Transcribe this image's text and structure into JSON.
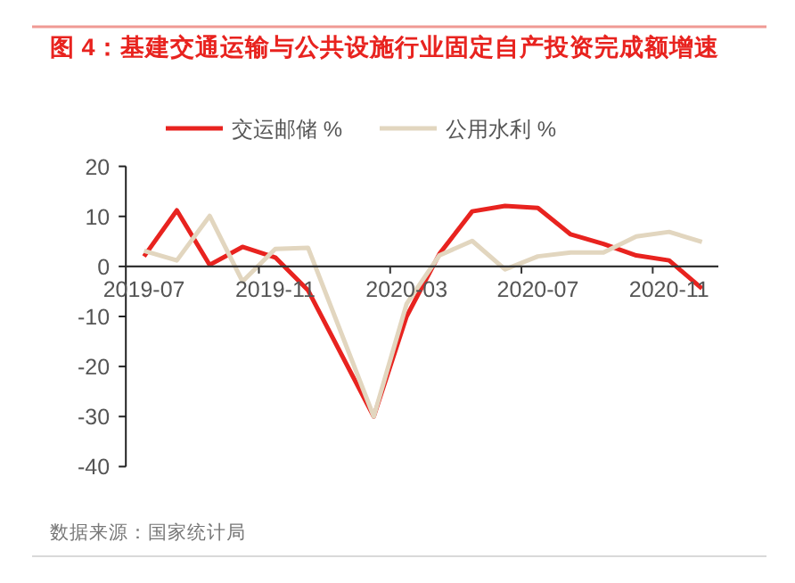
{
  "chart_data": {
    "type": "line",
    "title": "图 4：基建交通运输与公共设施行业固定自产投资完成额增速",
    "categories": [
      "2019-07",
      null,
      null,
      null,
      "2019-11",
      null,
      null,
      null,
      "2020-03",
      null,
      null,
      null,
      "2020-07",
      null,
      null,
      null,
      "2020-11",
      null
    ],
    "series": [
      {
        "name": "交运邮储 %",
        "color": "#e8231f",
        "values": [
          2.0,
          11.2,
          0.3,
          3.9,
          1.8,
          -4.8,
          null,
          -30,
          -10,
          2.5,
          11.0,
          12.1,
          11.7,
          6.4,
          4.5,
          2.2,
          1.2,
          -4.4
        ]
      },
      {
        "name": "公用水利 %",
        "color": "#e2d6bf",
        "values": [
          3.1,
          1.2,
          10.1,
          -3.0,
          3.5,
          3.7,
          null,
          -30,
          -7.5,
          2.2,
          5.1,
          -0.6,
          2.0,
          2.8,
          2.8,
          6.0,
          6.9,
          4.9
        ]
      }
    ],
    "ylim": [
      -40,
      20
    ],
    "yticks": [
      -40,
      -30,
      -20,
      -10,
      0,
      10,
      20
    ],
    "grid": false,
    "legend": "top",
    "marker": "none",
    "line_style": "solid",
    "annotations": [
      "数据来源：国家统计局"
    ]
  }
}
